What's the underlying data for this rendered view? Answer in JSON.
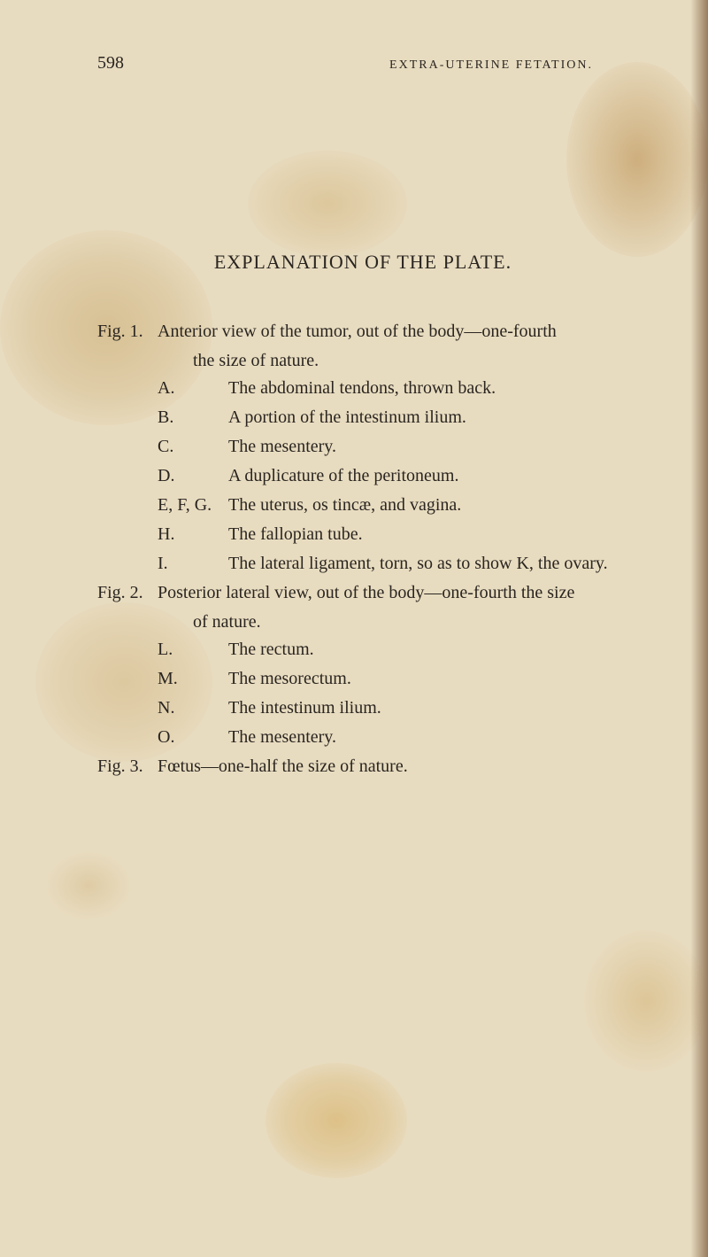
{
  "page": {
    "number": "598",
    "running_title": "EXTRA-UTERINE FETATION.",
    "background_color": "#e8dcc0",
    "text_color": "#2a2520",
    "font_family": "Georgia, Times New Roman, serif",
    "body_fontsize": 20,
    "header_fontsize": 14,
    "title_fontsize": 22
  },
  "plate_title": "EXPLANATION OF THE PLATE.",
  "figures": [
    {
      "label": "Fig. 1.",
      "description": "Anterior view of the tumor, out of the body—one-fourth",
      "continuation": "the size of nature.",
      "items": [
        {
          "label": "A.",
          "text": "The abdominal tendons, thrown back."
        },
        {
          "label": "B.",
          "text": "A portion of the intestinum ilium."
        },
        {
          "label": "C.",
          "text": "The mesentery."
        },
        {
          "label": "D.",
          "text": "A duplicature of the peritoneum."
        },
        {
          "label": "E, F, G.",
          "text": "The uterus, os tincæ, and vagina."
        },
        {
          "label": "H.",
          "text": "The fallopian tube."
        },
        {
          "label": "I.",
          "text": "The lateral ligament, torn, so as to show K, the ovary."
        }
      ]
    },
    {
      "label": "Fig. 2.",
      "description": "Posterior lateral view, out of the body—one-fourth the size",
      "continuation": "of nature.",
      "items": [
        {
          "label": "L.",
          "text": "The rectum."
        },
        {
          "label": "M.",
          "text": "The mesorectum."
        },
        {
          "label": "N.",
          "text": "The intestinum ilium."
        },
        {
          "label": "O.",
          "text": "The mesentery."
        }
      ]
    },
    {
      "label": "Fig. 3.",
      "description": "Fœtus—one-half the size of nature.",
      "continuation": "",
      "items": []
    }
  ],
  "stains": {
    "colors": [
      "#c8a05a",
      "#be9650",
      "#c39b55",
      "#d2a550",
      "#b4823c"
    ]
  }
}
